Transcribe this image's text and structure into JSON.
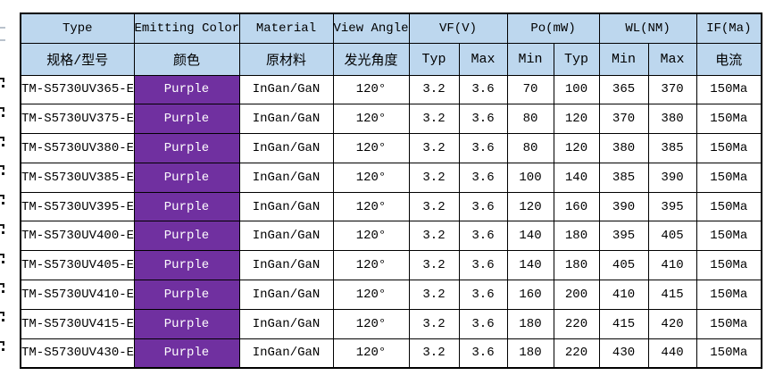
{
  "title": "UV LED specification table",
  "colors": {
    "header_bg": "#BDD7EE",
    "purple_bg": "#7030A0",
    "purple_text": "#FFFFFF",
    "grid": "#000000",
    "cell_bg": "#FFFFFF",
    "text": "#000000"
  },
  "table": {
    "header_row1": {
      "type": "Type",
      "emitting_color": "Emitting Color",
      "material": "Material",
      "view_angle": "View Angle",
      "vf": "VF(V)",
      "po": "Po(mW)",
      "wl": "WL(NM)",
      "if_current": "IF(Ma)"
    },
    "header_row2": {
      "type": "规格/型号",
      "emitting_color": "颜色",
      "material": "原材料",
      "view_angle": "发光角度",
      "vf_typ": "Typ",
      "vf_max": "Max",
      "po_min": "Min",
      "po_typ": "Typ",
      "wl_min": "Min",
      "wl_max": "Max",
      "if_current": "电流"
    },
    "rows": [
      [
        "TM-S5730UV365-E",
        "Purple",
        "InGan/GaN",
        "120°",
        "3.2",
        "3.6",
        "70",
        "100",
        "365",
        "370",
        "150Ma"
      ],
      [
        "TM-S5730UV375-E",
        "Purple",
        "InGan/GaN",
        "120°",
        "3.2",
        "3.6",
        "80",
        "120",
        "370",
        "380",
        "150Ma"
      ],
      [
        "TM-S5730UV380-E",
        "Purple",
        "InGan/GaN",
        "120°",
        "3.2",
        "3.6",
        "80",
        "120",
        "380",
        "385",
        "150Ma"
      ],
      [
        "TM-S5730UV385-E",
        "Purple",
        "InGan/GaN",
        "120°",
        "3.2",
        "3.6",
        "100",
        "140",
        "385",
        "390",
        "150Ma"
      ],
      [
        "TM-S5730UV395-E",
        "Purple",
        "InGan/GaN",
        "120°",
        "3.2",
        "3.6",
        "120",
        "160",
        "390",
        "395",
        "150Ma"
      ],
      [
        "TM-S5730UV400-E",
        "Purple",
        "InGan/GaN",
        "120°",
        "3.2",
        "3.6",
        "140",
        "180",
        "395",
        "405",
        "150Ma"
      ],
      [
        "TM-S5730UV405-E",
        "Purple",
        "InGan/GaN",
        "120°",
        "3.2",
        "3.6",
        "140",
        "180",
        "405",
        "410",
        "150Ma"
      ],
      [
        "TM-S5730UV410-E",
        "Purple",
        "InGan/GaN",
        "120°",
        "3.2",
        "3.6",
        "160",
        "200",
        "410",
        "415",
        "150Ma"
      ],
      [
        "TM-S5730UV415-E",
        "Purple",
        "InGan/GaN",
        "120°",
        "3.2",
        "3.6",
        "180",
        "220",
        "415",
        "420",
        "150Ma"
      ],
      [
        "TM-S5730UV430-E",
        "Purple",
        "InGan/GaN",
        "120°",
        "3.2",
        "3.6",
        "180",
        "220",
        "430",
        "440",
        "150Ma"
      ]
    ]
  }
}
